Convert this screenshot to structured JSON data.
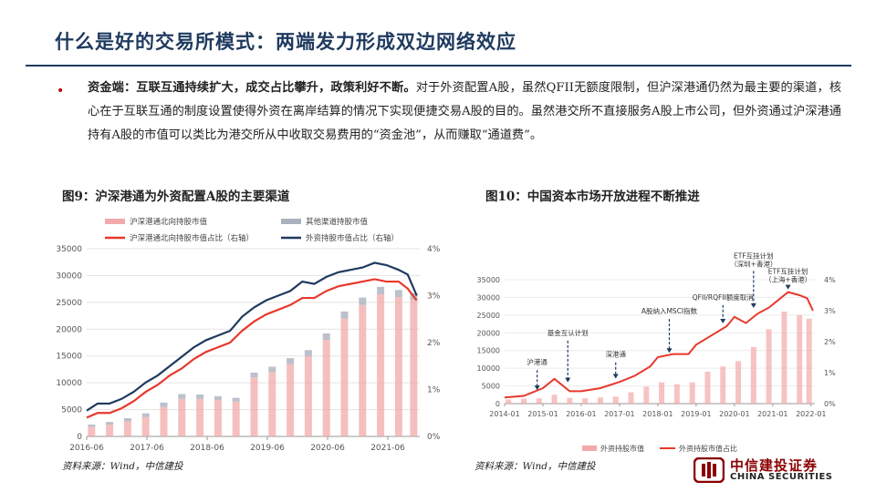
{
  "header": {
    "title": "什么是好的交易所模式：两端发力形成双边网络效应"
  },
  "body_text": {
    "bullet_bold": "资金端：互联互通持续扩大，成交占比攀升，政策利好不断。",
    "bullet_rest": "对于外资配置A股，虽然QFII无额度限制，但沪深港通仍然为最主要的渠道，核心在于互联互通的制度设置使得外资在离岸结算的情况下实现便捷交易A股的目的。虽然港交所不直接服务A股上市公司，但外资通过沪深港通持有A股的市值可以类比为港交所从中收取交易费用的“资金池”，从而赚取“通道费”。"
  },
  "colors": {
    "red": "#e8382d",
    "pink": "#f2a9a9",
    "navy": "#1f3a5f",
    "gray": "#a9b2bd"
  },
  "chart_data": [
    {
      "id": "fig9",
      "title": "图9：沪深港通为外资配置A股的主要渠道",
      "type": "bar+line",
      "legend": {
        "bar1": "沪深港通北向持股市值",
        "bar2": "其他渠道持股市值",
        "line1": "沪深港通北向持股市值占比（右轴）",
        "line2": "外资持股市值占比（右轴）"
      },
      "ylim_left": [
        0,
        35000
      ],
      "yticks_left": [
        "0",
        "5000",
        "10000",
        "15000",
        "20000",
        "25000",
        "30000",
        "35000"
      ],
      "ylim_right": [
        0,
        4
      ],
      "yticks_right": [
        "0%",
        "1%",
        "2%",
        "3%",
        "4%"
      ],
      "xlim": [
        2016.42,
        2021.95
      ],
      "xticks": [
        {
          "v": 2016.42,
          "label": "2016-06"
        },
        {
          "v": 2017.42,
          "label": "2017-06"
        },
        {
          "v": 2018.42,
          "label": "2018-06"
        },
        {
          "v": 2019.42,
          "label": "2019-06"
        },
        {
          "v": 2020.42,
          "label": "2020-06"
        },
        {
          "v": 2021.42,
          "label": "2021-06"
        }
      ],
      "bars_t": [
        2016.5,
        2016.8,
        2017.1,
        2017.4,
        2017.7,
        2018.0,
        2018.3,
        2018.6,
        2018.9,
        2019.2,
        2019.5,
        2019.8,
        2020.1,
        2020.4,
        2020.7,
        2021.0,
        2021.3,
        2021.6,
        2021.85
      ],
      "bars_northbound": [
        1800,
        2200,
        2800,
        3600,
        5500,
        7000,
        7000,
        6800,
        6500,
        11000,
        12000,
        13500,
        15000,
        18000,
        22000,
        24500,
        26500,
        26000,
        25500
      ],
      "bars_other": [
        400,
        500,
        600,
        700,
        800,
        900,
        800,
        700,
        700,
        900,
        1000,
        1100,
        1100,
        1200,
        1300,
        1400,
        1400,
        1300,
        1200
      ],
      "line1_t": [
        2016.42,
        2016.6,
        2016.8,
        2017.0,
        2017.2,
        2017.4,
        2017.6,
        2017.8,
        2018.0,
        2018.2,
        2018.4,
        2018.6,
        2018.8,
        2019.0,
        2019.2,
        2019.4,
        2019.6,
        2019.8,
        2020.0,
        2020.2,
        2020.4,
        2020.6,
        2020.8,
        2021.0,
        2021.2,
        2021.4,
        2021.6,
        2021.75,
        2021.9
      ],
      "line1_v": [
        0.4,
        0.5,
        0.5,
        0.6,
        0.75,
        0.95,
        1.1,
        1.3,
        1.45,
        1.65,
        1.8,
        1.9,
        2.0,
        2.25,
        2.45,
        2.6,
        2.7,
        2.8,
        2.95,
        2.95,
        3.1,
        3.2,
        3.25,
        3.3,
        3.35,
        3.3,
        3.3,
        3.15,
        2.9
      ],
      "line2_t": [
        2016.42,
        2016.6,
        2016.8,
        2017.0,
        2017.2,
        2017.4,
        2017.6,
        2017.8,
        2018.0,
        2018.2,
        2018.4,
        2018.6,
        2018.8,
        2019.0,
        2019.2,
        2019.4,
        2019.6,
        2019.8,
        2020.0,
        2020.2,
        2020.4,
        2020.6,
        2020.8,
        2021.0,
        2021.2,
        2021.4,
        2021.6,
        2021.75,
        2021.9
      ],
      "line2_v": [
        0.55,
        0.7,
        0.7,
        0.8,
        0.95,
        1.15,
        1.3,
        1.5,
        1.7,
        1.9,
        2.05,
        2.15,
        2.25,
        2.55,
        2.75,
        2.9,
        3.0,
        3.1,
        3.3,
        3.25,
        3.4,
        3.5,
        3.55,
        3.6,
        3.7,
        3.65,
        3.55,
        3.45,
        3.0
      ],
      "source": "资料来源：Wind，中信建投"
    },
    {
      "id": "fig10",
      "title": "图10：中国资本市场开放进程不断推进",
      "type": "bar+line",
      "legend": {
        "bar1": "外资持股市值",
        "line1": "外资持股市值占比"
      },
      "ylim_left": [
        0,
        35000
      ],
      "yticks_left": [
        "0",
        "5000",
        "10000",
        "15000",
        "20000",
        "25000",
        "30000",
        "35000"
      ],
      "ylim_right": [
        0,
        4
      ],
      "yticks_right": [
        "0%",
        "1%",
        "2%",
        "3%",
        "4%"
      ],
      "xlim": [
        2014.0,
        2022.1
      ],
      "xticks": [
        {
          "v": 2014.0,
          "label": "2014-01"
        },
        {
          "v": 2015.0,
          "label": "2015-01"
        },
        {
          "v": 2016.0,
          "label": "2016-01"
        },
        {
          "v": 2017.0,
          "label": "2017-01"
        },
        {
          "v": 2018.0,
          "label": "2018-01"
        },
        {
          "v": 2019.0,
          "label": "2019-01"
        },
        {
          "v": 2020.0,
          "label": "2020-01"
        },
        {
          "v": 2021.0,
          "label": "2021-01"
        },
        {
          "v": 2022.0,
          "label": "2022-01"
        }
      ],
      "bars_t": [
        2014.1,
        2014.5,
        2014.9,
        2015.3,
        2015.7,
        2016.1,
        2016.5,
        2016.9,
        2017.3,
        2017.7,
        2018.1,
        2018.5,
        2018.9,
        2019.3,
        2019.7,
        2020.1,
        2020.5,
        2020.9,
        2021.3,
        2021.7,
        2021.95
      ],
      "bars_values": [
        1200,
        1400,
        1500,
        2500,
        1600,
        1500,
        1700,
        2000,
        3200,
        4800,
        6000,
        5500,
        6000,
        9000,
        10500,
        12000,
        16000,
        21000,
        26000,
        25000,
        24000
      ],
      "line_t": [
        2014.0,
        2014.5,
        2015.0,
        2015.3,
        2015.7,
        2016.0,
        2016.5,
        2017.0,
        2017.4,
        2017.8,
        2018.0,
        2018.4,
        2018.8,
        2019.0,
        2019.4,
        2019.8,
        2020.0,
        2020.3,
        2020.6,
        2020.9,
        2021.1,
        2021.4,
        2021.7,
        2021.9,
        2022.05
      ],
      "line_v": [
        0.2,
        0.25,
        0.5,
        0.8,
        0.4,
        0.4,
        0.5,
        0.7,
        0.9,
        1.2,
        1.5,
        1.6,
        1.6,
        1.9,
        2.2,
        2.5,
        2.8,
        2.6,
        2.9,
        3.1,
        3.3,
        3.6,
        3.5,
        3.4,
        3.0
      ],
      "annotations": [
        {
          "t": 2014.85,
          "label": "沪港通",
          "value": 0.35,
          "label_value": 1.2
        },
        {
          "t": 2015.65,
          "label": "基金互认计划",
          "value": 0.6,
          "label_value": 2.15
        },
        {
          "t": 2016.9,
          "label": "深港通",
          "value": 0.72,
          "label_value": 1.45
        },
        {
          "t": 2018.3,
          "label": "A股纳入MSCI指数",
          "value": 1.55,
          "label_value": 2.85
        },
        {
          "t": 2019.7,
          "label": "QFII/RQFII额度取消",
          "value": 2.5,
          "label_value": 3.3
        },
        {
          "t": 2020.5,
          "label": "ETF互挂计划（深圳+香港）",
          "value": 3.0,
          "label_value": 4.4
        },
        {
          "t": 2021.4,
          "label": "ETF互挂计划（上海+香港）",
          "value": 3.6,
          "label_value": 3.9
        }
      ],
      "source": "资料来源：Wind，中信建投"
    }
  ],
  "logo": {
    "cn": "中信建投证券",
    "en": "CHINA SECURITIES"
  }
}
